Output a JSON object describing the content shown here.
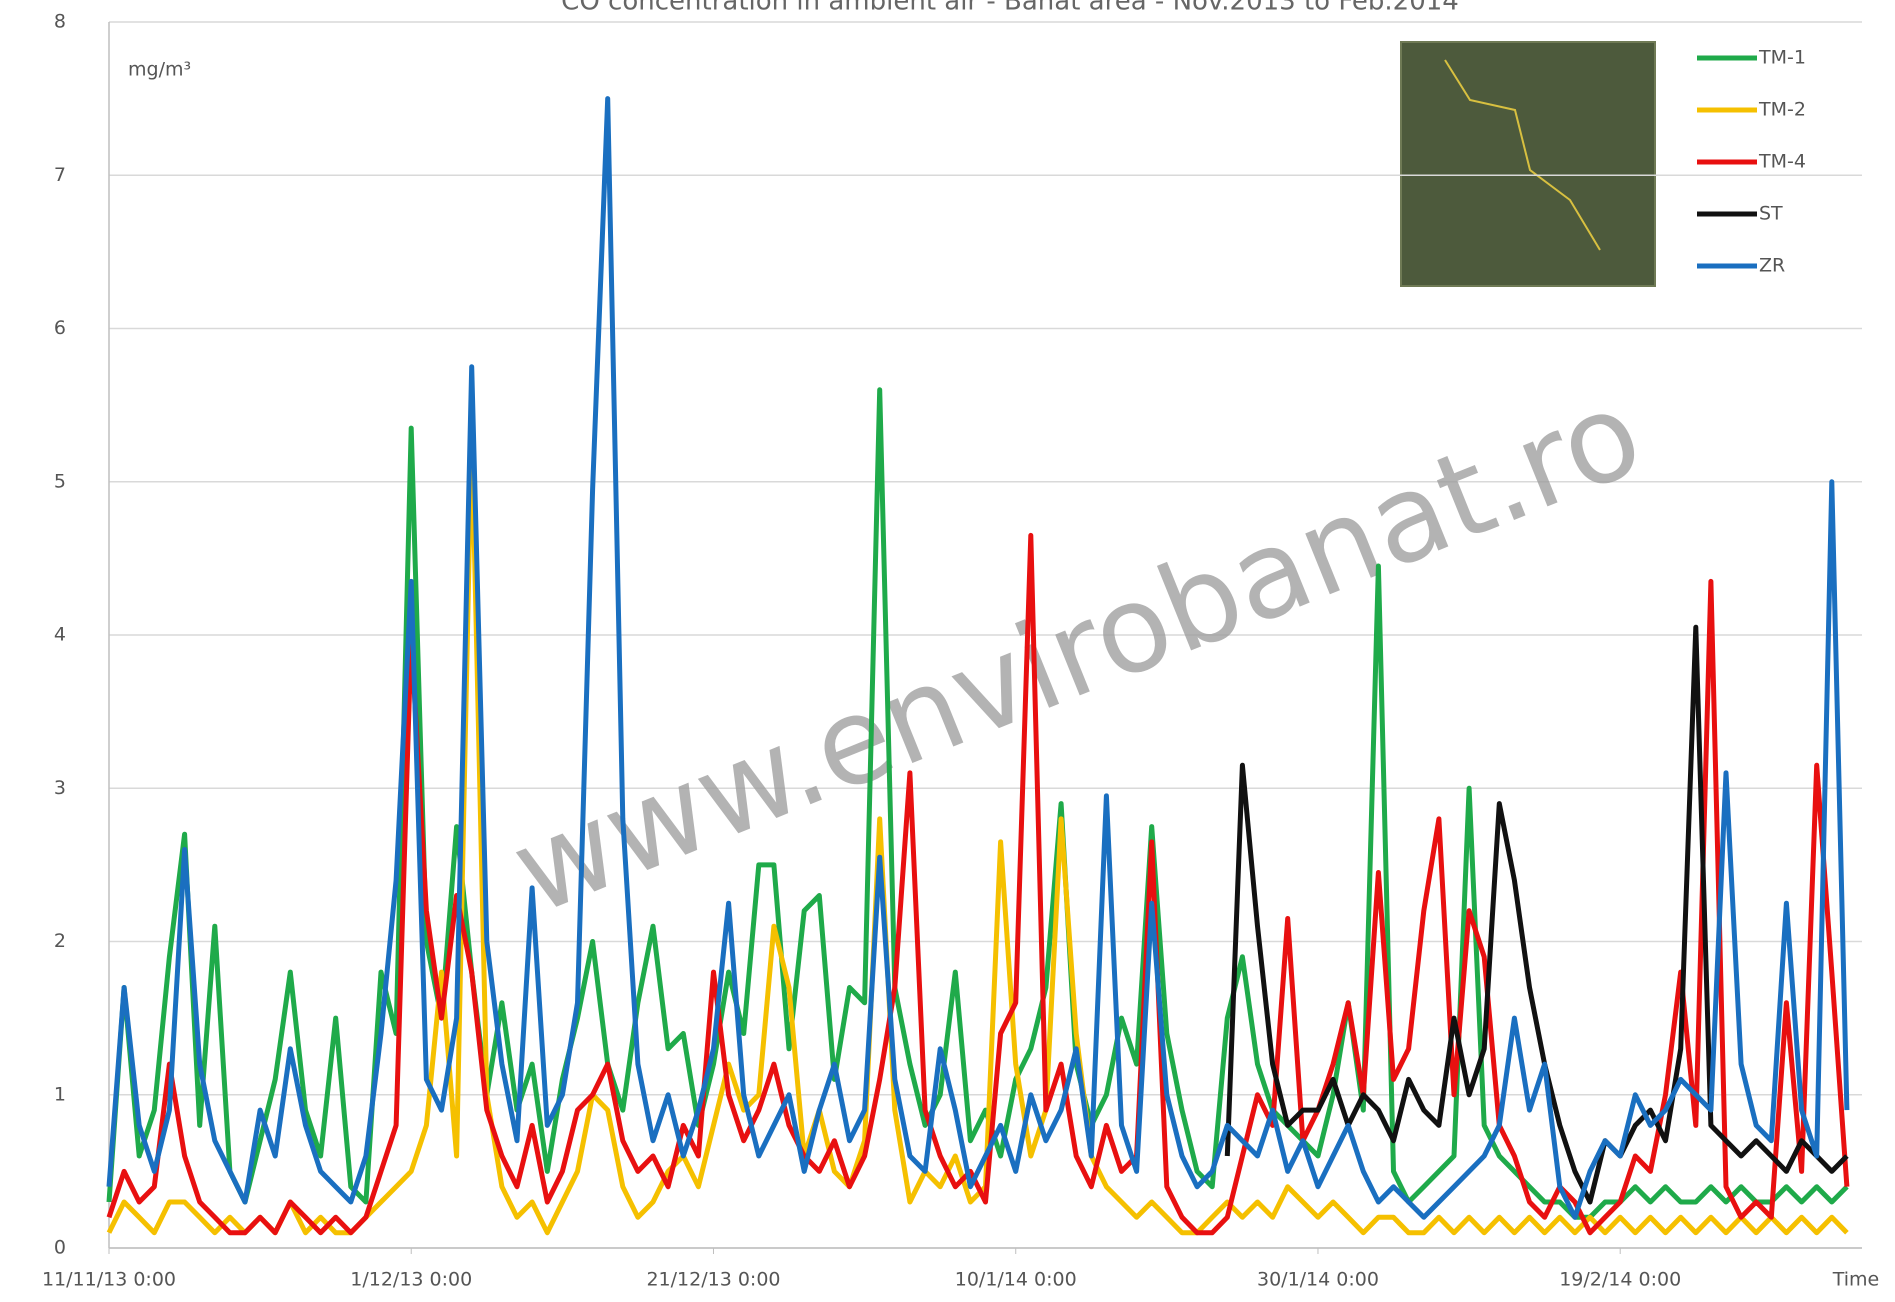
{
  "chart_data": {
    "type": "line",
    "title": "CO concentration in ambient air - Banat area - Nov.2013 to Feb.2014",
    "y_label": "mg/m³",
    "x_label": "Time",
    "watermark": "www.envirobanat.ro",
    "legend": "upper right",
    "grid": true,
    "ylim": [
      0,
      8
    ],
    "yticks": [
      0,
      1,
      2,
      3,
      4,
      5,
      6,
      7,
      8
    ],
    "xlim": [
      0,
      116
    ],
    "xticks": [
      {
        "value": 0,
        "label": "11/11/13 0:00"
      },
      {
        "value": 20,
        "label": "1/12/13 0:00"
      },
      {
        "value": 40,
        "label": "21/12/13 0:00"
      },
      {
        "value": 60,
        "label": "10/1/14 0:00"
      },
      {
        "value": 80,
        "label": "30/1/14 0:00"
      },
      {
        "value": 100,
        "label": "19/2/14 0:00"
      }
    ],
    "x": [
      0,
      1,
      2,
      3,
      4,
      5,
      6,
      7,
      8,
      9,
      10,
      11,
      12,
      13,
      14,
      15,
      16,
      17,
      18,
      19,
      20,
      21,
      22,
      23,
      24,
      25,
      26,
      27,
      28,
      29,
      30,
      31,
      32,
      33,
      34,
      35,
      36,
      37,
      38,
      39,
      40,
      41,
      42,
      43,
      44,
      45,
      46,
      47,
      48,
      49,
      50,
      51,
      52,
      53,
      54,
      55,
      56,
      57,
      58,
      59,
      60,
      61,
      62,
      63,
      64,
      65,
      66,
      67,
      68,
      69,
      70,
      71,
      72,
      73,
      74,
      75,
      76,
      77,
      78,
      79,
      80,
      81,
      82,
      83,
      84,
      85,
      86,
      87,
      88,
      89,
      90,
      91,
      92,
      93,
      94,
      95,
      96,
      97,
      98,
      99,
      100,
      101,
      102,
      103,
      104,
      105,
      106,
      107,
      108,
      109,
      110,
      111,
      112,
      113,
      114,
      115
    ],
    "series": [
      {
        "name": "TM-1",
        "color": "#1faa4a",
        "values": [
          0.3,
          1.7,
          0.6,
          0.9,
          1.9,
          2.7,
          0.8,
          2.1,
          0.5,
          0.3,
          0.7,
          1.1,
          1.8,
          0.9,
          0.6,
          1.5,
          0.4,
          0.3,
          1.8,
          1.4,
          5.35,
          2.0,
          1.5,
          2.75,
          1.8,
          1.0,
          1.6,
          0.9,
          1.2,
          0.5,
          1.1,
          1.5,
          2.0,
          1.2,
          0.9,
          1.6,
          2.1,
          1.3,
          1.4,
          0.8,
          1.2,
          1.8,
          1.4,
          2.5,
          2.5,
          1.3,
          2.2,
          2.3,
          1.1,
          1.7,
          1.6,
          5.6,
          1.7,
          1.2,
          0.8,
          1.0,
          1.8,
          0.7,
          0.9,
          0.6,
          1.1,
          1.3,
          1.7,
          2.9,
          1.2,
          0.8,
          1.0,
          1.5,
          1.2,
          2.75,
          1.4,
          0.9,
          0.5,
          0.4,
          1.5,
          1.9,
          1.2,
          0.9,
          0.8,
          0.7,
          0.6,
          1.0,
          1.6,
          0.9,
          4.45,
          0.5,
          0.3,
          0.4,
          0.5,
          0.6,
          3.0,
          0.8,
          0.6,
          0.5,
          0.4,
          0.3,
          0.3,
          0.2,
          0.2,
          0.3,
          0.3,
          0.4,
          0.3,
          0.4,
          0.3,
          0.3,
          0.4,
          0.3,
          0.4,
          0.3,
          0.3,
          0.4,
          0.3,
          0.4,
          0.3,
          0.4
        ]
      },
      {
        "name": "TM-2",
        "color": "#f5c000",
        "values": [
          0.1,
          0.3,
          0.2,
          0.1,
          0.3,
          0.3,
          0.2,
          0.1,
          0.2,
          0.1,
          0.2,
          0.1,
          0.3,
          0.1,
          0.2,
          0.1,
          0.1,
          0.2,
          0.3,
          0.4,
          0.5,
          0.8,
          1.8,
          0.6,
          5.35,
          1.0,
          0.4,
          0.2,
          0.3,
          0.1,
          0.3,
          0.5,
          1.0,
          0.9,
          0.4,
          0.2,
          0.3,
          0.5,
          0.6,
          0.4,
          0.8,
          1.2,
          0.9,
          1.0,
          2.1,
          1.7,
          0.6,
          0.9,
          0.5,
          0.4,
          0.7,
          2.8,
          0.9,
          0.3,
          0.5,
          0.4,
          0.6,
          0.3,
          0.4,
          2.65,
          1.2,
          0.6,
          0.9,
          2.8,
          1.4,
          0.6,
          0.4,
          0.3,
          0.2,
          0.3,
          0.2,
          0.1,
          0.1,
          0.2,
          0.3,
          0.2,
          0.3,
          0.2,
          0.4,
          0.3,
          0.2,
          0.3,
          0.2,
          0.1,
          0.2,
          0.2,
          0.1,
          0.1,
          0.2,
          0.1,
          0.2,
          0.1,
          0.2,
          0.1,
          0.2,
          0.1,
          0.2,
          0.1,
          0.2,
          0.1,
          0.2,
          0.1,
          0.2,
          0.1,
          0.2,
          0.1,
          0.2,
          0.1,
          0.2,
          0.1,
          0.2,
          0.1,
          0.2,
          0.1,
          0.2,
          0.1
        ]
      },
      {
        "name": "TM-4",
        "color": "#e81010",
        "values": [
          0.2,
          0.5,
          0.3,
          0.4,
          1.2,
          0.6,
          0.3,
          0.2,
          0.1,
          0.1,
          0.2,
          0.1,
          0.3,
          0.2,
          0.1,
          0.2,
          0.1,
          0.2,
          0.5,
          0.8,
          4.0,
          2.2,
          1.5,
          2.3,
          1.8,
          0.9,
          0.6,
          0.4,
          0.8,
          0.3,
          0.5,
          0.9,
          1.0,
          1.2,
          0.7,
          0.5,
          0.6,
          0.4,
          0.8,
          0.6,
          1.8,
          1.0,
          0.7,
          0.9,
          1.2,
          0.8,
          0.6,
          0.5,
          0.7,
          0.4,
          0.6,
          1.1,
          1.7,
          3.1,
          0.9,
          0.6,
          0.4,
          0.5,
          0.3,
          1.4,
          1.6,
          4.65,
          0.9,
          1.2,
          0.6,
          0.4,
          0.8,
          0.5,
          0.6,
          2.65,
          0.4,
          0.2,
          0.1,
          0.1,
          0.2,
          0.6,
          1.0,
          0.8,
          2.15,
          0.7,
          0.9,
          1.2,
          1.6,
          1.0,
          2.45,
          1.1,
          1.3,
          2.2,
          2.8,
          1.0,
          2.2,
          1.9,
          0.8,
          0.6,
          0.3,
          0.2,
          0.4,
          0.3,
          0.1,
          0.2,
          0.3,
          0.6,
          0.5,
          1.0,
          1.8,
          0.8,
          4.35,
          0.4,
          0.2,
          0.3,
          0.2,
          1.6,
          0.5,
          3.15,
          1.8,
          0.4
        ]
      },
      {
        "name": "ST",
        "color": "#111111",
        "values": [
          null,
          null,
          null,
          null,
          null,
          null,
          null,
          null,
          null,
          null,
          null,
          null,
          null,
          null,
          null,
          null,
          null,
          null,
          null,
          null,
          null,
          null,
          null,
          null,
          null,
          null,
          null,
          null,
          null,
          null,
          null,
          null,
          null,
          null,
          null,
          null,
          null,
          null,
          null,
          null,
          null,
          null,
          null,
          null,
          null,
          null,
          null,
          null,
          null,
          null,
          null,
          null,
          null,
          null,
          null,
          null,
          null,
          null,
          null,
          null,
          null,
          null,
          null,
          null,
          null,
          null,
          null,
          null,
          null,
          null,
          null,
          null,
          null,
          null,
          0.6,
          3.15,
          2.1,
          1.2,
          0.8,
          0.9,
          0.9,
          1.1,
          0.8,
          1.0,
          0.9,
          0.7,
          1.1,
          0.9,
          0.8,
          1.5,
          1.0,
          1.3,
          2.9,
          2.4,
          1.7,
          1.2,
          0.8,
          0.5,
          0.3,
          0.7,
          0.6,
          0.8,
          0.9,
          0.7,
          1.3,
          4.05,
          0.8,
          0.7,
          0.6,
          0.7,
          0.6,
          0.5,
          0.7,
          0.6,
          0.5,
          0.6
        ]
      },
      {
        "name": "ZR",
        "color": "#1a6fc0",
        "values": [
          0.4,
          1.7,
          0.8,
          0.5,
          0.9,
          2.6,
          1.2,
          0.7,
          0.5,
          0.3,
          0.9,
          0.6,
          1.3,
          0.8,
          0.5,
          0.4,
          0.3,
          0.6,
          1.4,
          2.4,
          4.35,
          1.1,
          0.9,
          1.5,
          5.75,
          2.0,
          1.2,
          0.7,
          2.35,
          0.8,
          1.0,
          1.6,
          4.95,
          7.5,
          2.8,
          1.2,
          0.7,
          1.0,
          0.6,
          0.9,
          1.3,
          2.25,
          1.0,
          0.6,
          0.8,
          1.0,
          0.5,
          0.9,
          1.2,
          0.7,
          0.9,
          2.55,
          1.1,
          0.6,
          0.5,
          1.3,
          0.9,
          0.4,
          0.6,
          0.8,
          0.5,
          1.0,
          0.7,
          0.9,
          1.3,
          0.6,
          2.95,
          0.8,
          0.5,
          2.25,
          1.0,
          0.6,
          0.4,
          0.5,
          0.8,
          0.7,
          0.6,
          0.9,
          0.5,
          0.7,
          0.4,
          0.6,
          0.8,
          0.5,
          0.3,
          0.4,
          0.3,
          0.2,
          0.3,
          0.4,
          0.5,
          0.6,
          0.8,
          1.5,
          0.9,
          1.2,
          0.4,
          0.2,
          0.5,
          0.7,
          0.6,
          1.0,
          0.8,
          0.9,
          1.1,
          1.0,
          0.9,
          3.1,
          1.2,
          0.8,
          0.7,
          2.25,
          0.9,
          0.6,
          5.0,
          0.9
        ]
      }
    ]
  }
}
